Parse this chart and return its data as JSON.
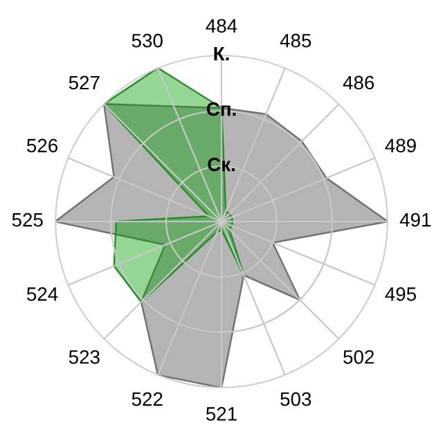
{
  "chart_data": {
    "type": "radar",
    "categories": [
      "484",
      "485",
      "486",
      "489",
      "491",
      "495",
      "502",
      "503",
      "521",
      "522",
      "523",
      "524",
      "525",
      "526",
      "527",
      "530"
    ],
    "ylim": [
      0,
      3
    ],
    "yticks": [
      {
        "value": 1,
        "label": "Ск."
      },
      {
        "value": 2,
        "label": "Сп."
      },
      {
        "value": 3,
        "label": "К."
      }
    ],
    "grid": true,
    "series": [
      {
        "color": "#b4b4b4",
        "values": [
          2.05,
          2.1,
          2.05,
          2.05,
          3.0,
          1.0,
          2.0,
          1.05,
          3.0,
          3.0,
          2.05,
          1.1,
          3.0,
          2.1,
          3.0,
          null
        ]
      },
      {
        "color": "#009d00",
        "values": [
          2.05,
          0.2,
          0.2,
          0.2,
          0.2,
          0.2,
          0.2,
          1.05,
          0.15,
          0.2,
          2.05,
          2.1,
          1.9,
          0.25,
          3.0,
          3.0
        ]
      }
    ]
  }
}
